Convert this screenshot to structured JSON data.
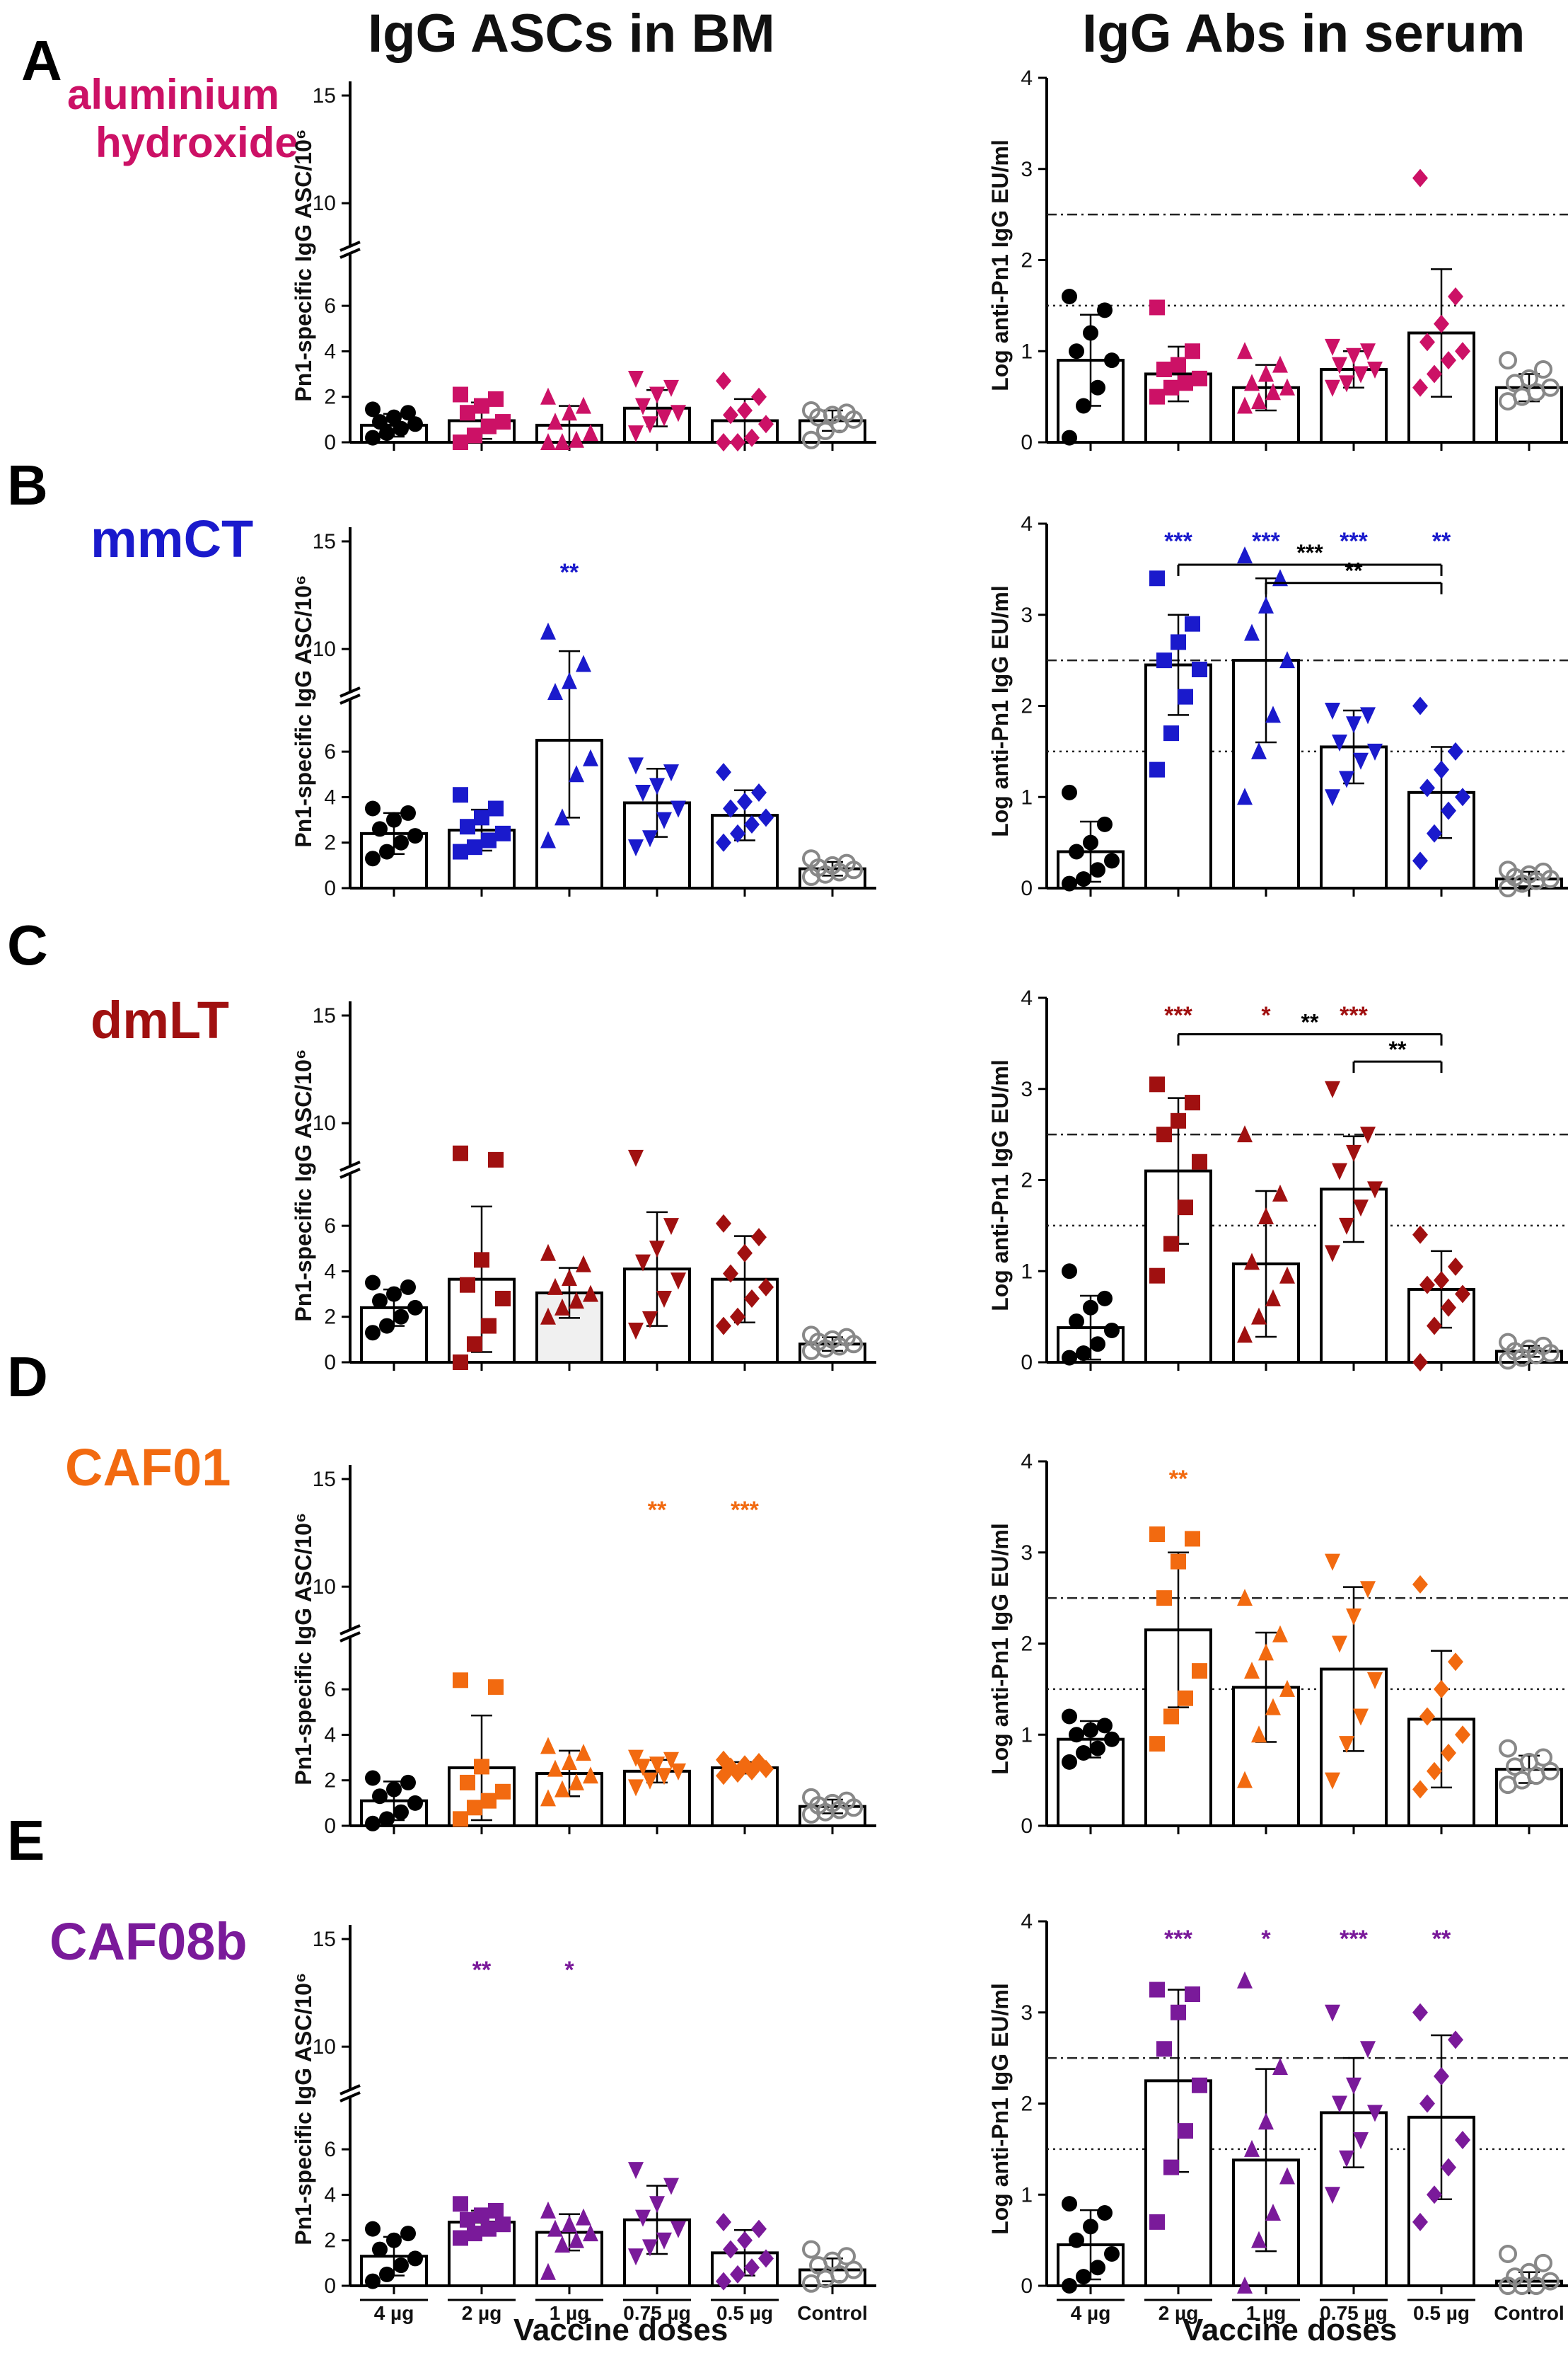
{
  "headers": {
    "left": "IgG ASCs in BM",
    "right": "IgG Abs in serum"
  },
  "x_axis_title": "Vaccine doses",
  "chart_data": {
    "type": "bar",
    "categories": [
      "4 µg",
      "2 µg",
      "1 µg",
      "0.75 µg",
      "0.5 µg",
      "Control"
    ],
    "left_axis": {
      "ylabel": "Pn1-specific IgG ASC/10⁶",
      "ticks": [
        "0",
        "2",
        "4",
        "6",
        "10",
        "15"
      ],
      "segments": [
        [
          0,
          7
        ],
        [
          8,
          15
        ]
      ]
    },
    "right_axis": {
      "ylabel": "Log anti-Pn1 IgG EU/ml",
      "ticks": [
        "0",
        "1",
        "2",
        "3",
        "4"
      ],
      "ylim": [
        0,
        4
      ],
      "reference_lines": [
        1.5,
        2.5
      ]
    },
    "panels": [
      {
        "label": "A",
        "adjuvant": [
          "aluminium",
          "hydroxide"
        ],
        "color": "#cc1166",
        "asc": [
          {
            "m": 0.75,
            "sd": 0.5,
            "pts": [
              0.2,
              0.4,
              0.6,
              0.8,
              0.9,
              1.1,
              1.3,
              1.45
            ]
          },
          {
            "m": 0.95,
            "sd": 0.8,
            "pts": [
              0,
              0.3,
              0.7,
              0.9,
              1.3,
              1.6,
              1.9,
              2.1
            ]
          },
          {
            "m": 0.75,
            "sd": 0.85,
            "pts": [
              0,
              0,
              0.1,
              0.4,
              0.9,
              1.3,
              1.6,
              2.0
            ]
          },
          {
            "m": 1.5,
            "sd": 0.8,
            "pts": [
              0.4,
              0.8,
              1.1,
              1.3,
              1.6,
              2.1,
              2.4,
              2.8
            ]
          },
          {
            "m": 0.95,
            "sd": 0.95,
            "pts": [
              0,
              0,
              0.2,
              0.8,
              1.2,
              1.4,
              2.0,
              2.7
            ]
          },
          {
            "m": 0.95,
            "sd": 0.45,
            "pts": [
              0.1,
              0.5,
              0.8,
              1.0,
              1.1,
              1.2,
              1.3,
              1.4
            ]
          }
        ],
        "ser": [
          {
            "m": 0.9,
            "sd": 0.5,
            "pts": [
              0.05,
              0.4,
              0.6,
              0.9,
              1.0,
              1.2,
              1.45,
              1.6
            ]
          },
          {
            "m": 0.75,
            "sd": 0.3,
            "pts": [
              0.5,
              0.6,
              0.65,
              0.7,
              0.8,
              0.85,
              1.0,
              1.48
            ]
          },
          {
            "m": 0.6,
            "sd": 0.25,
            "pts": [
              0.4,
              0.45,
              0.55,
              0.6,
              0.65,
              0.75,
              0.85,
              1.0
            ]
          },
          {
            "m": 0.8,
            "sd": 0.2,
            "pts": [
              0.6,
              0.65,
              0.75,
              0.8,
              0.85,
              0.95,
              1.0,
              1.05
            ]
          },
          {
            "m": 1.2,
            "sd": 0.7,
            "pts": [
              0.6,
              0.75,
              0.9,
              1.0,
              1.1,
              1.3,
              1.6,
              2.9
            ]
          },
          {
            "m": 0.6,
            "sd": 0.15,
            "pts": [
              0.45,
              0.5,
              0.55,
              0.6,
              0.65,
              0.7,
              0.8,
              0.9
            ]
          }
        ],
        "stars_asc": [
          "",
          "",
          "",
          "",
          "",
          ""
        ],
        "stars_ser": [
          "",
          "",
          "",
          "",
          "",
          ""
        ],
        "brackets": []
      },
      {
        "label": "B",
        "adjuvant": [
          "mmCT"
        ],
        "color": "#1a1acc",
        "asc": [
          {
            "m": 2.4,
            "sd": 0.9,
            "pts": [
              1.3,
              1.6,
              2.0,
              2.3,
              2.6,
              3.0,
              3.3,
              3.5
            ]
          },
          {
            "m": 2.55,
            "sd": 0.9,
            "pts": [
              1.6,
              1.8,
              2.1,
              2.4,
              2.7,
              3.1,
              3.5,
              4.1
            ]
          },
          {
            "m": 6.5,
            "sd": 3.4,
            "pts": [
              2.1,
              3.1,
              5.0,
              5.7,
              8.0,
              8.5,
              9.3,
              10.8
            ]
          },
          {
            "m": 3.75,
            "sd": 1.5,
            "pts": [
              1.8,
              2.2,
              3.0,
              3.5,
              4.2,
              4.5,
              5.1,
              5.4
            ]
          },
          {
            "m": 3.2,
            "sd": 1.1,
            "pts": [
              2.0,
              2.4,
              2.8,
              3.1,
              3.5,
              3.8,
              4.2,
              5.1
            ]
          },
          {
            "m": 0.85,
            "sd": 0.3,
            "pts": [
              0.5,
              0.6,
              0.7,
              0.8,
              0.9,
              1.0,
              1.1,
              1.3
            ]
          }
        ],
        "ser": [
          {
            "m": 0.4,
            "sd": 0.33,
            "pts": [
              0.05,
              0.1,
              0.2,
              0.3,
              0.4,
              0.5,
              0.7,
              1.05
            ]
          },
          {
            "m": 2.45,
            "sd": 0.55,
            "pts": [
              1.3,
              1.7,
              2.1,
              2.4,
              2.5,
              2.7,
              2.9,
              3.4
            ]
          },
          {
            "m": 2.5,
            "sd": 0.9,
            "pts": [
              1.0,
              1.5,
              1.9,
              2.5,
              2.8,
              3.1,
              3.4,
              3.65
            ]
          },
          {
            "m": 1.55,
            "sd": 0.4,
            "pts": [
              1.0,
              1.2,
              1.4,
              1.5,
              1.6,
              1.8,
              1.9,
              1.95
            ]
          },
          {
            "m": 1.05,
            "sd": 0.5,
            "pts": [
              0.3,
              0.6,
              0.85,
              1.0,
              1.1,
              1.3,
              1.5,
              2.0
            ]
          },
          {
            "m": 0.1,
            "sd": 0.08,
            "pts": [
              0.0,
              0.05,
              0.08,
              0.1,
              0.12,
              0.15,
              0.18,
              0.2
            ]
          }
        ],
        "stars_asc": [
          "",
          "",
          "**",
          "",
          "",
          ""
        ],
        "stars_ser": [
          "",
          "***",
          "***",
          "***",
          "**",
          ""
        ],
        "brackets": [
          {
            "from": 1,
            "to": 4,
            "level": 3.55,
            "text": "***"
          },
          {
            "from": 2,
            "to": 4,
            "level": 3.35,
            "text": "**"
          }
        ]
      },
      {
        "label": "C",
        "adjuvant": [
          "dmLT"
        ],
        "color": "#a01010",
        "asc": [
          {
            "m": 2.4,
            "sd": 0.8,
            "pts": [
              1.3,
              1.6,
              2.0,
              2.4,
              2.7,
              3.0,
              3.3,
              3.5
            ]
          },
          {
            "m": 3.65,
            "sd": 3.2,
            "pts": [
              0,
              0.8,
              1.6,
              2.8,
              3.4,
              4.5,
              8.3,
              8.6
            ]
          },
          {
            "m": 3.05,
            "sd": 1.1,
            "pts": [
              2.0,
              2.4,
              2.7,
              3.0,
              3.3,
              3.7,
              4.3,
              4.8
            ]
          },
          {
            "m": 4.1,
            "sd": 2.5,
            "pts": [
              1.4,
              1.9,
              2.8,
              3.6,
              4.4,
              5.0,
              6.0,
              8.4
            ]
          },
          {
            "m": 3.65,
            "sd": 1.9,
            "pts": [
              1.6,
              2.0,
              2.8,
              3.3,
              3.9,
              4.8,
              5.5,
              6.1
            ]
          },
          {
            "m": 0.8,
            "sd": 0.3,
            "pts": [
              0.5,
              0.6,
              0.7,
              0.8,
              0.9,
              1.0,
              1.1,
              1.2
            ]
          }
        ],
        "ser": [
          {
            "m": 0.38,
            "sd": 0.35,
            "pts": [
              0.05,
              0.1,
              0.2,
              0.35,
              0.45,
              0.6,
              0.7,
              1.0
            ]
          },
          {
            "m": 2.1,
            "sd": 0.8,
            "pts": [
              0.95,
              1.3,
              1.7,
              2.2,
              2.5,
              2.65,
              2.85,
              3.05
            ]
          },
          {
            "m": 1.08,
            "sd": 0.8,
            "pts": [
              0.3,
              0.5,
              0.7,
              0.95,
              1.1,
              1.6,
              1.85,
              2.5
            ]
          },
          {
            "m": 1.9,
            "sd": 0.58,
            "pts": [
              1.2,
              1.5,
              1.7,
              1.9,
              2.1,
              2.3,
              2.5,
              3.0
            ]
          },
          {
            "m": 0.8,
            "sd": 0.42,
            "pts": [
              0.0,
              0.4,
              0.6,
              0.75,
              0.85,
              0.9,
              1.05,
              1.4
            ]
          },
          {
            "m": 0.12,
            "sd": 0.06,
            "pts": [
              0.02,
              0.05,
              0.08,
              0.1,
              0.12,
              0.15,
              0.18,
              0.22
            ]
          }
        ],
        "stars_asc": [
          "",
          "",
          "",
          "",
          "",
          ""
        ],
        "stars_ser": [
          "",
          "***",
          "*",
          "***",
          "",
          ""
        ],
        "brackets": [
          {
            "from": 1,
            "to": 4,
            "level": 3.6,
            "text": "**"
          },
          {
            "from": 3,
            "to": 4,
            "level": 3.3,
            "text": "**"
          }
        ]
      },
      {
        "label": "D",
        "adjuvant": [
          "CAF01"
        ],
        "color": "#f26a10",
        "asc": [
          {
            "m": 1.1,
            "sd": 0.85,
            "pts": [
              0.1,
              0.3,
              0.6,
              1.0,
              1.3,
              1.6,
              1.9,
              2.1
            ]
          },
          {
            "m": 2.55,
            "sd": 2.3,
            "pts": [
              0.3,
              0.8,
              1.1,
              1.5,
              1.9,
              2.6,
              6.1,
              6.4
            ]
          },
          {
            "m": 2.3,
            "sd": 1.0,
            "pts": [
              1.2,
              1.6,
              1.9,
              2.2,
              2.5,
              2.8,
              3.2,
              3.5
            ]
          },
          {
            "m": 2.4,
            "sd": 0.5,
            "pts": [
              1.7,
              2.0,
              2.2,
              2.4,
              2.6,
              2.7,
              2.9,
              3.0
            ]
          },
          {
            "m": 2.55,
            "sd": 0.25,
            "pts": [
              2.2,
              2.3,
              2.4,
              2.5,
              2.6,
              2.7,
              2.8,
              2.9
            ]
          },
          {
            "m": 0.85,
            "sd": 0.3,
            "pts": [
              0.5,
              0.6,
              0.7,
              0.8,
              0.9,
              1.0,
              1.1,
              1.25
            ]
          }
        ],
        "ser": [
          {
            "m": 0.95,
            "sd": 0.2,
            "pts": [
              0.7,
              0.8,
              0.85,
              0.95,
              1.0,
              1.05,
              1.1,
              1.2
            ]
          },
          {
            "m": 2.15,
            "sd": 0.85,
            "pts": [
              0.9,
              1.2,
              1.4,
              1.7,
              2.5,
              2.9,
              3.15,
              3.2
            ]
          },
          {
            "m": 1.52,
            "sd": 0.6,
            "pts": [
              0.5,
              1.0,
              1.3,
              1.5,
              1.7,
              1.9,
              2.1,
              2.5
            ]
          },
          {
            "m": 1.72,
            "sd": 0.9,
            "pts": [
              0.5,
              0.9,
              1.2,
              1.6,
              2.0,
              2.3,
              2.6,
              2.9
            ]
          },
          {
            "m": 1.17,
            "sd": 0.75,
            "pts": [
              0.4,
              0.6,
              0.8,
              1.0,
              1.2,
              1.5,
              1.8,
              2.65
            ]
          },
          {
            "m": 0.62,
            "sd": 0.15,
            "pts": [
              0.45,
              0.5,
              0.55,
              0.6,
              0.65,
              0.7,
              0.75,
              0.85
            ]
          }
        ],
        "stars_asc": [
          "",
          "",
          "",
          "**",
          "***",
          ""
        ],
        "stars_ser": [
          "",
          "**",
          "",
          "",
          "",
          ""
        ],
        "brackets": []
      },
      {
        "label": "E",
        "adjuvant": [
          "CAF08b"
        ],
        "color": "#7a1a9a",
        "asc": [
          {
            "m": 1.3,
            "sd": 0.85,
            "pts": [
              0.2,
              0.5,
              0.9,
              1.2,
              1.6,
              2.0,
              2.3,
              2.5
            ]
          },
          {
            "m": 2.8,
            "sd": 0.5,
            "pts": [
              2.1,
              2.3,
              2.5,
              2.7,
              2.9,
              3.1,
              3.3,
              3.6
            ]
          },
          {
            "m": 2.35,
            "sd": 0.8,
            "pts": [
              0.6,
              1.8,
              2.0,
              2.3,
              2.5,
              2.7,
              3.0,
              3.3
            ]
          },
          {
            "m": 2.9,
            "sd": 1.5,
            "pts": [
              1.3,
              1.7,
              2.0,
              2.5,
              3.0,
              3.6,
              4.4,
              5.1
            ]
          },
          {
            "m": 1.45,
            "sd": 1.0,
            "pts": [
              0.2,
              0.5,
              0.8,
              1.2,
              1.6,
              2.0,
              2.5,
              2.8
            ]
          },
          {
            "m": 0.7,
            "sd": 0.5,
            "pts": [
              0.1,
              0.3,
              0.5,
              0.7,
              0.9,
              1.1,
              1.3,
              1.6
            ]
          }
        ],
        "ser": [
          {
            "m": 0.45,
            "sd": 0.38,
            "pts": [
              0.0,
              0.1,
              0.2,
              0.35,
              0.5,
              0.65,
              0.8,
              0.9
            ]
          },
          {
            "m": 2.25,
            "sd": 1.0,
            "pts": [
              0.7,
              1.3,
              1.7,
              2.2,
              2.6,
              3.0,
              3.2,
              3.25
            ]
          },
          {
            "m": 1.38,
            "sd": 1.0,
            "pts": [
              0.0,
              0.5,
              0.8,
              1.2,
              1.5,
              1.8,
              2.4,
              3.35
            ]
          },
          {
            "m": 1.9,
            "sd": 0.6,
            "pts": [
              1.0,
              1.4,
              1.6,
              1.9,
              2.0,
              2.2,
              2.6,
              3.0
            ]
          },
          {
            "m": 1.85,
            "sd": 0.9,
            "pts": [
              0.7,
              1.0,
              1.3,
              1.6,
              2.0,
              2.3,
              2.7,
              3.0
            ]
          },
          {
            "m": 0.05,
            "sd": 0.1,
            "pts": [
              0.0,
              0.0,
              0.0,
              0.05,
              0.1,
              0.15,
              0.25,
              0.35
            ]
          }
        ],
        "stars_asc": [
          "",
          "**",
          "*",
          "",
          "",
          ""
        ],
        "stars_ser": [
          "",
          "***",
          "*",
          "***",
          "**",
          ""
        ],
        "brackets": []
      }
    ]
  }
}
